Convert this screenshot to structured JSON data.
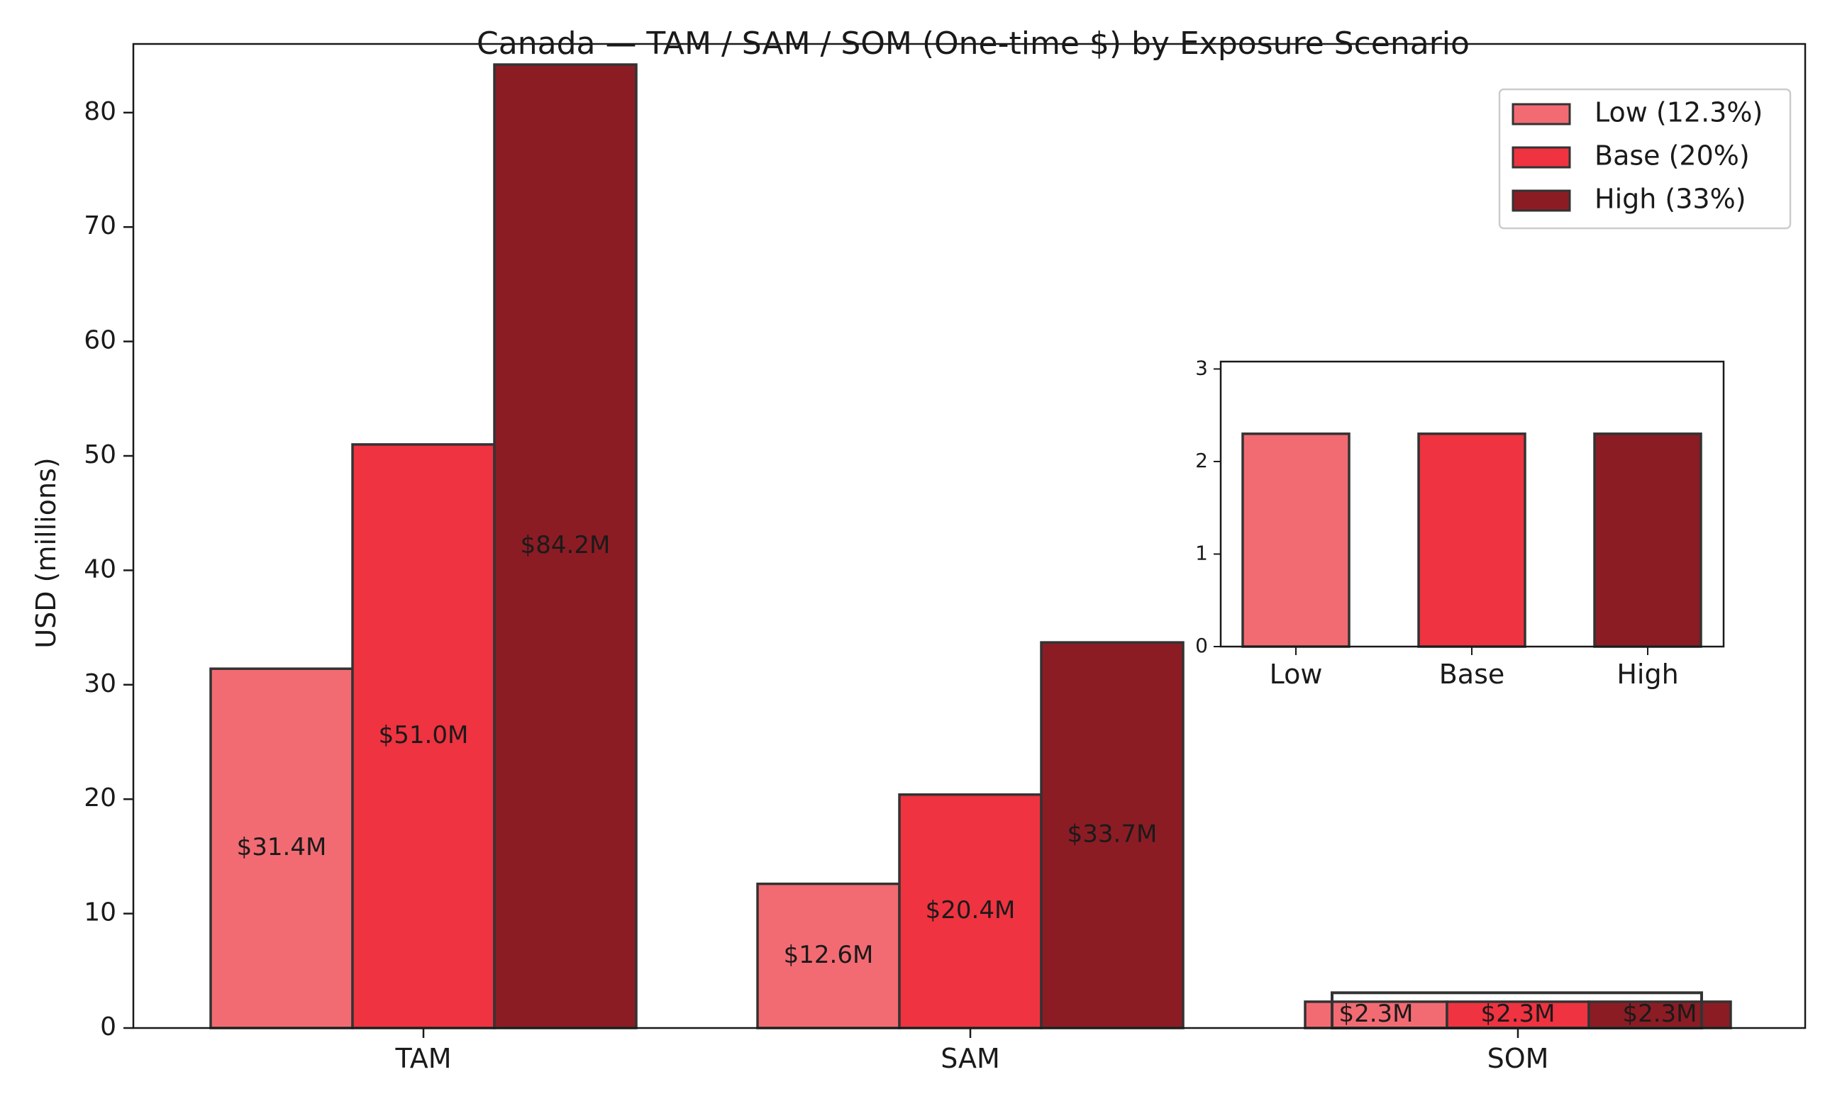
{
  "chart_data": {
    "type": "bar",
    "title": "Canada — TAM / SAM / SOM (One-time $) by Exposure Scenario",
    "xlabel": "",
    "ylabel": "USD (millions)",
    "ylim": [
      0,
      86
    ],
    "yticks": [
      0,
      10,
      20,
      30,
      40,
      50,
      60,
      70,
      80
    ],
    "grid": false,
    "legend_position": "top-right",
    "categories": [
      "TAM",
      "SAM",
      "SOM"
    ],
    "series": [
      {
        "name": "Low (12.3%)",
        "color": "#f26b73",
        "values": [
          31.4,
          12.6,
          2.3
        ],
        "labels": [
          "$31.4M",
          "$12.6M",
          "$2.3M"
        ]
      },
      {
        "name": "Base (20%)",
        "color": "#ef3340",
        "values": [
          51.0,
          20.4,
          2.3
        ],
        "labels": [
          "$51.0M",
          "$20.4M",
          "$2.3M"
        ]
      },
      {
        "name": "High (33%)",
        "color": "#8b1c24",
        "values": [
          84.2,
          33.7,
          2.3
        ],
        "labels": [
          "$84.2M",
          "$33.7M",
          "$2.3M"
        ]
      }
    ],
    "inset": {
      "type": "bar",
      "categories": [
        "Low",
        "Base",
        "High"
      ],
      "values": [
        2.3,
        2.3,
        2.3
      ],
      "colors": [
        "#f26b73",
        "#ef3340",
        "#8b1c24"
      ],
      "ylim": [
        0,
        3.08
      ],
      "yticks": [
        0,
        1,
        2,
        3
      ]
    }
  }
}
